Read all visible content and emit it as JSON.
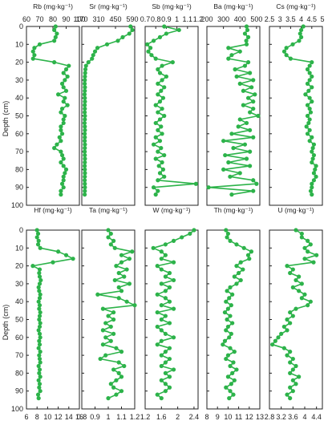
{
  "figure": {
    "ylabel": "Depth (cm)",
    "yticks": [
      "0",
      "10",
      "20",
      "30",
      "40",
      "50",
      "60",
      "70",
      "80",
      "90",
      "100"
    ],
    "line_color": "#2db34a",
    "frame_color": "#222222"
  },
  "chart_data": [
    {
      "type": "line",
      "title": "Rb (mg·kg⁻¹)",
      "xlim": [
        60,
        100
      ],
      "xticks": [
        "60",
        "70",
        "80",
        "90",
        "100"
      ],
      "ylim": [
        0,
        100
      ],
      "depth": [
        0,
        2,
        4,
        6,
        8,
        10,
        12,
        14,
        16,
        18,
        20,
        22,
        24,
        26,
        28,
        30,
        32,
        34,
        36,
        38,
        40,
        42,
        44,
        46,
        48,
        50,
        52,
        54,
        56,
        58,
        60,
        62,
        64,
        66,
        68,
        70,
        72,
        74,
        76,
        78,
        80,
        82,
        84,
        86,
        88,
        90,
        92,
        94
      ],
      "values": [
        82,
        81,
        83,
        82,
        81,
        70,
        66,
        65,
        66,
        65,
        81,
        92,
        90,
        88,
        91,
        89,
        87,
        88,
        90,
        84,
        89,
        88,
        91,
        87,
        86,
        89,
        88,
        88,
        86,
        86,
        87,
        85,
        86,
        83,
        81,
        86,
        87,
        88,
        86,
        88,
        90,
        89,
        88,
        88,
        87,
        88,
        86,
        86
      ]
    },
    {
      "type": "line",
      "title": "Sr (mg·kg⁻¹)",
      "xlim": [
        170,
        610
      ],
      "xticks": [
        "170",
        "310",
        "450",
        "590"
      ],
      "ylim": [
        0,
        100
      ],
      "depth": [
        0,
        2,
        4,
        6,
        8,
        10,
        12,
        14,
        16,
        18,
        20,
        22,
        24,
        26,
        28,
        30,
        32,
        34,
        36,
        38,
        40,
        42,
        44,
        46,
        48,
        50,
        52,
        54,
        56,
        58,
        60,
        62,
        64,
        66,
        68,
        70,
        72,
        74,
        76,
        78,
        80,
        82,
        84,
        86,
        88,
        90,
        92,
        94
      ],
      "values": [
        575,
        590,
        565,
        510,
        470,
        380,
        300,
        280,
        265,
        255,
        225,
        205,
        200,
        198,
        196,
        195,
        194,
        196,
        195,
        193,
        195,
        196,
        194,
        195,
        194,
        196,
        195,
        193,
        195,
        196,
        194,
        195,
        194,
        196,
        195,
        194,
        195,
        196,
        195,
        194,
        195,
        196,
        195,
        194,
        195,
        196,
        195,
        194
      ]
    },
    {
      "type": "line",
      "title": "Sb (mg·kg⁻¹)",
      "xlim": [
        0.7,
        1.2
      ],
      "xticks": [
        "0.7",
        "0.8",
        "0.9",
        "1",
        "1.1",
        "1.2"
      ],
      "ylim": [
        0,
        100
      ],
      "depth": [
        0,
        2,
        4,
        6,
        8,
        10,
        12,
        14,
        16,
        18,
        20,
        22,
        24,
        26,
        28,
        30,
        32,
        34,
        36,
        38,
        40,
        42,
        44,
        46,
        48,
        50,
        52,
        54,
        56,
        58,
        60,
        62,
        64,
        66,
        68,
        70,
        72,
        74,
        76,
        78,
        80,
        82,
        84,
        86,
        88,
        90,
        92,
        94
      ],
      "values": [
        0.88,
        1.02,
        0.9,
        0.84,
        0.78,
        0.72,
        0.75,
        0.73,
        0.76,
        0.8,
        0.96,
        0.86,
        0.82,
        0.84,
        0.9,
        0.86,
        0.82,
        0.88,
        0.85,
        0.82,
        0.87,
        0.84,
        0.8,
        0.86,
        0.82,
        0.88,
        0.84,
        0.8,
        0.85,
        0.82,
        0.86,
        0.8,
        0.84,
        0.78,
        0.85,
        0.82,
        0.88,
        0.8,
        0.86,
        0.83,
        0.87,
        0.84,
        0.88,
        0.82,
        1.18,
        0.78,
        0.82,
        0.8
      ]
    },
    {
      "type": "line",
      "title": "Ba (mg·kg⁻¹)",
      "xlim": [
        200,
        520
      ],
      "xticks": [
        "200",
        "300",
        "400",
        "500"
      ],
      "ylim": [
        0,
        100
      ],
      "depth": [
        0,
        2,
        4,
        6,
        8,
        10,
        12,
        14,
        16,
        18,
        20,
        22,
        24,
        26,
        28,
        30,
        32,
        34,
        36,
        38,
        40,
        42,
        44,
        46,
        48,
        50,
        52,
        54,
        56,
        58,
        60,
        62,
        64,
        66,
        68,
        70,
        72,
        74,
        76,
        78,
        80,
        82,
        84,
        86,
        88,
        90,
        92,
        94
      ],
      "values": [
        440,
        445,
        430,
        450,
        438,
        440,
        330,
        400,
        350,
        330,
        450,
        430,
        370,
        460,
        380,
        480,
        400,
        470,
        420,
        490,
        450,
        480,
        420,
        480,
        460,
        510,
        400,
        440,
        390,
        460,
        350,
        480,
        300,
        430,
        360,
        460,
        310,
        440,
        330,
        460,
        300,
        400,
        340,
        480,
        500,
        210,
        480,
        350
      ]
    },
    {
      "type": "line",
      "title": "Cs (mg·kg⁻¹)",
      "xlim": [
        2.5,
        5.0
      ],
      "xticks": [
        "2.5",
        "3",
        "3.5",
        "4",
        "4.5",
        "5"
      ],
      "ylim": [
        0,
        100
      ],
      "depth": [
        0,
        2,
        4,
        6,
        8,
        10,
        12,
        14,
        16,
        18,
        20,
        22,
        24,
        26,
        28,
        30,
        32,
        34,
        36,
        38,
        40,
        42,
        44,
        46,
        48,
        50,
        52,
        54,
        56,
        58,
        60,
        62,
        64,
        66,
        68,
        70,
        72,
        74,
        76,
        78,
        80,
        82,
        84,
        86,
        88,
        90,
        92,
        94
      ],
      "values": [
        4.1,
        4.0,
        3.95,
        4.0,
        3.9,
        3.6,
        3.3,
        3.2,
        3.3,
        3.5,
        4.5,
        4.4,
        4.3,
        4.4,
        4.5,
        4.4,
        4.3,
        4.5,
        4.35,
        4.2,
        4.4,
        4.5,
        4.3,
        4.4,
        4.45,
        4.3,
        4.4,
        4.35,
        4.25,
        4.4,
        4.3,
        4.5,
        4.4,
        4.6,
        4.55,
        4.5,
        4.6,
        4.55,
        4.5,
        4.7,
        4.65,
        4.6,
        4.7,
        4.6,
        4.5,
        4.5,
        4.45,
        4.5
      ]
    },
    {
      "type": "line",
      "title": "Hf (mg·kg⁻¹)",
      "xlim": [
        6,
        16
      ],
      "xticks": [
        "6",
        "8",
        "10",
        "12",
        "14",
        "16"
      ],
      "ylim": [
        0,
        100
      ],
      "depth": [
        0,
        2,
        4,
        6,
        8,
        10,
        12,
        14,
        16,
        18,
        20,
        22,
        24,
        26,
        28,
        30,
        32,
        34,
        36,
        38,
        40,
        42,
        44,
        46,
        48,
        50,
        52,
        54,
        56,
        58,
        60,
        62,
        64,
        66,
        68,
        70,
        72,
        74,
        76,
        78,
        80,
        82,
        84,
        86,
        88,
        90,
        92,
        94
      ],
      "values": [
        8.0,
        8.2,
        8.0,
        8.3,
        8.2,
        8.6,
        12.0,
        13.5,
        14.8,
        11.0,
        7.2,
        8.5,
        8.4,
        8.5,
        8.7,
        8.5,
        8.3,
        8.4,
        8.6,
        8.5,
        8.3,
        8.5,
        8.4,
        8.6,
        8.5,
        8.4,
        8.6,
        8.5,
        8.3,
        8.5,
        8.6,
        8.4,
        8.5,
        8.3,
        8.6,
        8.4,
        8.5,
        8.6,
        8.3,
        8.5,
        8.4,
        8.6,
        8.3,
        8.5,
        8.4,
        8.6,
        8.2,
        8.3
      ]
    },
    {
      "type": "line",
      "title": "Ta (mg·kg⁻¹)",
      "xlim": [
        0.8,
        1.2
      ],
      "xticks": [
        "0.8",
        "0.9",
        "1",
        "1.1",
        "1.2"
      ],
      "ylim": [
        0,
        100
      ],
      "depth": [
        0,
        2,
        4,
        6,
        8,
        10,
        12,
        14,
        16,
        18,
        20,
        22,
        24,
        26,
        28,
        30,
        32,
        34,
        36,
        38,
        40,
        42,
        44,
        46,
        48,
        50,
        52,
        54,
        56,
        58,
        60,
        62,
        64,
        66,
        68,
        70,
        72,
        74,
        76,
        78,
        80,
        82,
        84,
        86,
        88,
        90,
        92,
        94
      ],
      "values": [
        1.0,
        1.02,
        1.0,
        1.04,
        1.02,
        1.05,
        1.18,
        1.1,
        1.16,
        1.1,
        1.06,
        1.14,
        1.08,
        1.12,
        1.05,
        1.16,
        1.08,
        1.1,
        0.92,
        1.08,
        1.14,
        1.2,
        0.96,
        1.04,
        1.0,
        1.04,
        0.98,
        1.02,
        0.96,
        1.04,
        0.98,
        1.02,
        0.96,
        1.06,
        1.1,
        0.98,
        0.94,
        1.08,
        1.12,
        1.04,
        1.08,
        1.1,
        1.06,
        1.02,
        1.04,
        1.1,
        1.06,
        1.0
      ]
    },
    {
      "type": "line",
      "title": "W (mg·kg⁻¹)",
      "xlim": [
        1.2,
        2.5
      ],
      "xticks": [
        "1.2",
        "1.6",
        "2",
        "2.4"
      ],
      "ylim": [
        0,
        100
      ],
      "depth": [
        0,
        2,
        4,
        6,
        8,
        10,
        12,
        14,
        16,
        18,
        20,
        22,
        24,
        26,
        28,
        30,
        32,
        34,
        36,
        38,
        40,
        42,
        44,
        46,
        48,
        50,
        52,
        54,
        56,
        58,
        60,
        62,
        64,
        66,
        68,
        70,
        72,
        74,
        76,
        78,
        80,
        82,
        84,
        86,
        88,
        90,
        92,
        94
      ],
      "values": [
        2.4,
        2.3,
        2.1,
        1.9,
        1.7,
        1.4,
        1.6,
        1.7,
        1.6,
        1.9,
        1.5,
        1.6,
        1.8,
        1.7,
        1.9,
        1.6,
        1.8,
        1.7,
        1.5,
        1.7,
        1.8,
        1.6,
        1.9,
        1.5,
        1.7,
        1.6,
        1.8,
        1.5,
        1.6,
        1.7,
        1.9,
        1.6,
        1.5,
        1.8,
        1.7,
        1.6,
        1.8,
        1.7,
        1.6,
        1.9,
        1.7,
        1.8,
        1.6,
        1.7,
        1.8,
        1.7,
        1.5,
        1.6
      ]
    },
    {
      "type": "line",
      "title": "Th (mg·kg⁻¹)",
      "xlim": [
        8,
        13
      ],
      "xticks": [
        "8",
        "9",
        "10",
        "11",
        "12",
        "13"
      ],
      "ylim": [
        0,
        100
      ],
      "depth": [
        0,
        2,
        4,
        6,
        8,
        10,
        12,
        14,
        16,
        18,
        20,
        22,
        24,
        26,
        28,
        30,
        32,
        34,
        36,
        38,
        40,
        42,
        44,
        46,
        48,
        50,
        52,
        54,
        56,
        58,
        60,
        62,
        64,
        66,
        68,
        70,
        72,
        74,
        76,
        78,
        80,
        82,
        84,
        86,
        88,
        90,
        92,
        94
      ],
      "values": [
        9.8,
        10.0,
        9.9,
        10.2,
        10.8,
        11.5,
        12.2,
        11.9,
        12.0,
        11.2,
        10.8,
        11.4,
        11.0,
        10.6,
        11.2,
        10.8,
        10.2,
        9.9,
        10.4,
        10.1,
        9.8,
        10.3,
        10.0,
        9.7,
        10.2,
        9.9,
        10.4,
        10.0,
        9.8,
        10.3,
        10.1,
        9.7,
        9.5,
        10.2,
        10.6,
        10.0,
        9.8,
        10.5,
        10.2,
        10.8,
        10.4,
        10.0,
        10.6,
        10.3,
        9.8,
        10.2,
        10.5,
        10.1
      ]
    },
    {
      "type": "line",
      "title": "U (mg·kg⁻¹)",
      "xlim": [
        2.8,
        4.6
      ],
      "xticks": [
        "2.8",
        "3.2",
        "3.6",
        "4",
        "4.4"
      ],
      "ylim": [
        0,
        100
      ],
      "depth": [
        0,
        2,
        4,
        6,
        8,
        10,
        12,
        14,
        16,
        18,
        20,
        22,
        24,
        26,
        28,
        30,
        32,
        34,
        36,
        38,
        40,
        42,
        44,
        46,
        48,
        50,
        52,
        54,
        56,
        58,
        60,
        62,
        64,
        66,
        68,
        70,
        72,
        74,
        76,
        78,
        80,
        82,
        84,
        86,
        88,
        90,
        92,
        94
      ],
      "values": [
        3.7,
        3.9,
        3.9,
        4.1,
        4.2,
        4.0,
        4.1,
        4.4,
        4.0,
        4.3,
        3.4,
        3.6,
        3.5,
        3.8,
        3.7,
        3.9,
        3.6,
        3.8,
        4.0,
        3.9,
        4.2,
        4.1,
        3.7,
        3.5,
        3.6,
        3.4,
        3.5,
        3.3,
        3.4,
        3.2,
        3.1,
        3.0,
        2.9,
        3.3,
        3.5,
        3.4,
        3.6,
        3.5,
        3.7,
        3.6,
        3.5,
        3.8,
        3.6,
        3.7,
        3.5,
        3.6,
        3.4,
        3.5
      ]
    }
  ]
}
